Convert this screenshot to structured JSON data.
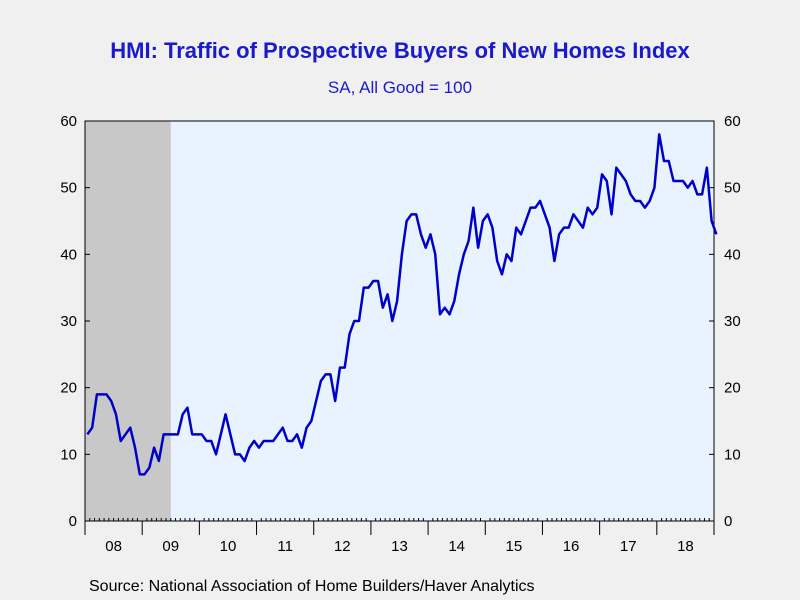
{
  "title": "HMI: Traffic of Prospective Buyers of New Homes Index",
  "subtitle": "SA, All Good = 100",
  "source": "Source:  National Association of Home Builders/Haver Analytics",
  "colors": {
    "line": "#0000c8",
    "recession": "#c8c8c8",
    "plot_background": "#e8f3ff",
    "title": "#1a1acc"
  },
  "chart_data": {
    "type": "line",
    "title": "HMI: Traffic of Prospective Buyers of New Homes Index",
    "subtitle": "SA, All Good = 100",
    "ylim": [
      0,
      60
    ],
    "yticks": [
      0,
      10,
      20,
      30,
      40,
      50,
      60
    ],
    "y_axis_both_sides": true,
    "x_tick_labels": [
      "08",
      "09",
      "10",
      "11",
      "12",
      "13",
      "14",
      "15",
      "16",
      "17",
      "18"
    ],
    "x_start": "2008-01",
    "frequency": "monthly",
    "grid": false,
    "shaded_recession": {
      "start": "2008-01",
      "end": "2009-06"
    },
    "series": [
      {
        "values": [
          13,
          14,
          19,
          19,
          19,
          18,
          16,
          12,
          13,
          14,
          11,
          7,
          7,
          8,
          11,
          9,
          13,
          13,
          13,
          13,
          16,
          17,
          13,
          13,
          13,
          12,
          12,
          10,
          13,
          16,
          13,
          10,
          10,
          9,
          11,
          12,
          11,
          12,
          12,
          12,
          13,
          14,
          12,
          12,
          13,
          11,
          14,
          15,
          18,
          21,
          22,
          22,
          18,
          23,
          23,
          28,
          30,
          30,
          35,
          35,
          36,
          36,
          32,
          34,
          30,
          33,
          40,
          45,
          46,
          46,
          43,
          41,
          43,
          40,
          31,
          32,
          31,
          33,
          37,
          40,
          42,
          47,
          41,
          45,
          46,
          44,
          39,
          37,
          40,
          39,
          44,
          43,
          45,
          47,
          47,
          48,
          46,
          44,
          39,
          43,
          44,
          44,
          46,
          45,
          44,
          47,
          46,
          47,
          52,
          51,
          46,
          53,
          52,
          51,
          49,
          48,
          48,
          47,
          48,
          50,
          58,
          54,
          54,
          51,
          51,
          51,
          50,
          51,
          49,
          49,
          53,
          45,
          43
        ]
      }
    ]
  }
}
